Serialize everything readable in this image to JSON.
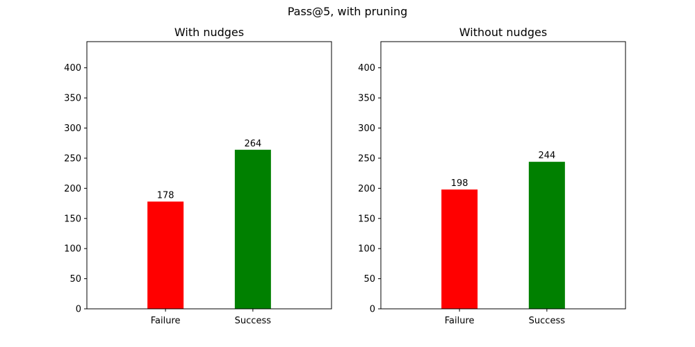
{
  "figure": {
    "suptitle": "Pass@5, with pruning"
  },
  "chart_data": [
    {
      "type": "bar",
      "title": "With nudges",
      "categories": [
        "Failure",
        "Success"
      ],
      "values": [
        178,
        264
      ],
      "colors": [
        "#ff0000",
        "#008000"
      ],
      "data_labels": [
        "178",
        "264"
      ],
      "ylim": [
        0,
        443.4
      ],
      "yticks": [
        0,
        50,
        100,
        150,
        200,
        250,
        300,
        350,
        400
      ],
      "xlabel": "",
      "ylabel": "",
      "grid": false
    },
    {
      "type": "bar",
      "title": "Without nudges",
      "categories": [
        "Failure",
        "Success"
      ],
      "values": [
        198,
        244
      ],
      "colors": [
        "#ff0000",
        "#008000"
      ],
      "data_labels": [
        "198",
        "244"
      ],
      "ylim": [
        0,
        443.4
      ],
      "yticks": [
        0,
        50,
        100,
        150,
        200,
        250,
        300,
        350,
        400
      ],
      "xlabel": "",
      "ylabel": "",
      "grid": false
    }
  ]
}
